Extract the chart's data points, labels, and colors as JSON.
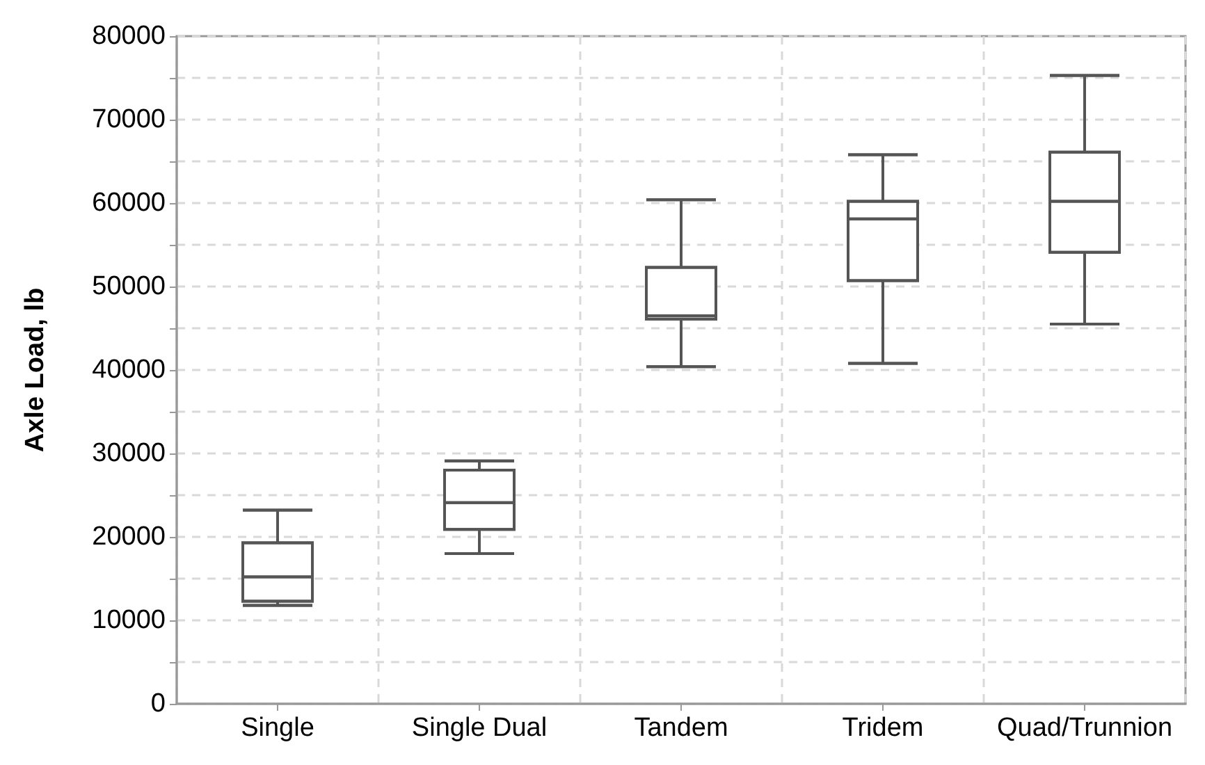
{
  "chart_data": {
    "type": "box",
    "ylabel": "Axle Load, lb",
    "categories": [
      "Single",
      "Single Dual",
      "Tandem",
      "Tridem",
      "Quad/Trunnion"
    ],
    "series": [
      {
        "color": "#555555",
        "boxes": [
          {
            "low": 11800,
            "q1": 12300,
            "median": 15200,
            "q3": 19300,
            "high": 23200
          },
          {
            "low": 18000,
            "q1": 20900,
            "median": 24100,
            "q3": 28000,
            "high": 29100
          },
          {
            "low": 40400,
            "q1": 46100,
            "median": 46500,
            "q3": 52300,
            "high": 60400
          },
          {
            "low": 40800,
            "q1": 50700,
            "median": 58100,
            "q3": 60200,
            "high": 65800
          },
          {
            "low": 45500,
            "q1": 54100,
            "median": 60200,
            "q3": 66100,
            "high": 75300
          }
        ]
      }
    ],
    "ylim": [
      0,
      80000
    ],
    "yticks": [
      0,
      {
        "value": 5000,
        "label": null
      },
      10000,
      {
        "value": 15000,
        "label": null
      },
      20000,
      {
        "value": 25000,
        "label": null
      },
      30000,
      {
        "value": 35000,
        "label": null
      },
      40000,
      {
        "value": 45000,
        "label": null
      },
      50000,
      {
        "value": 55000,
        "label": null
      },
      60000,
      {
        "value": 65000,
        "label": null
      },
      70000,
      {
        "value": 75000,
        "label": null
      },
      80000
    ],
    "grid": true
  }
}
